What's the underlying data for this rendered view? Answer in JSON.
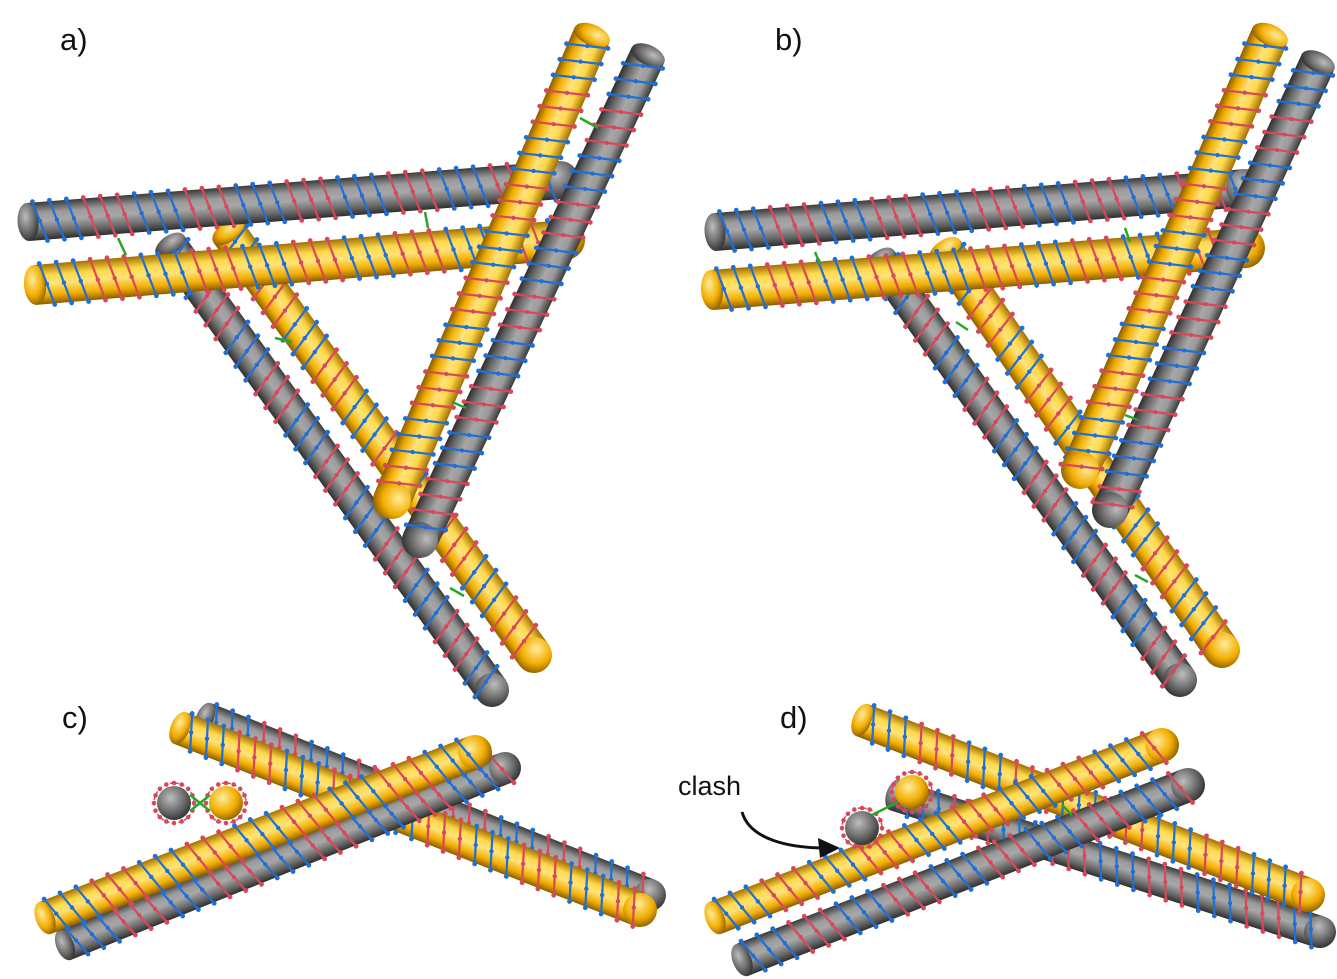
{
  "panels": [
    {
      "label": "a)"
    },
    {
      "label": "b)"
    },
    {
      "label": "c)"
    },
    {
      "label": "d)"
    }
  ],
  "annotation": {
    "text": "clash"
  },
  "colors": {
    "yellow_helix": "#f4b400",
    "gray_helix": "#6f6f6f",
    "strand_blue": "#1f6fd6",
    "strand_red": "#d9475a",
    "crossover_green": "#2aa52a",
    "background": "#ffffff"
  }
}
